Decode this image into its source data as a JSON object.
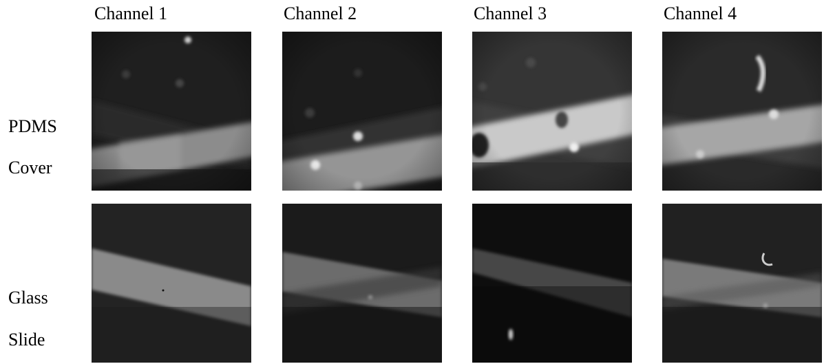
{
  "column_headers": [
    "Channel 1",
    "Channel 2",
    "Channel 3",
    "Channel 4"
  ],
  "row_labels": [
    [
      "PDMS",
      "Cover"
    ],
    [
      "Glass",
      "Slide"
    ]
  ]
}
